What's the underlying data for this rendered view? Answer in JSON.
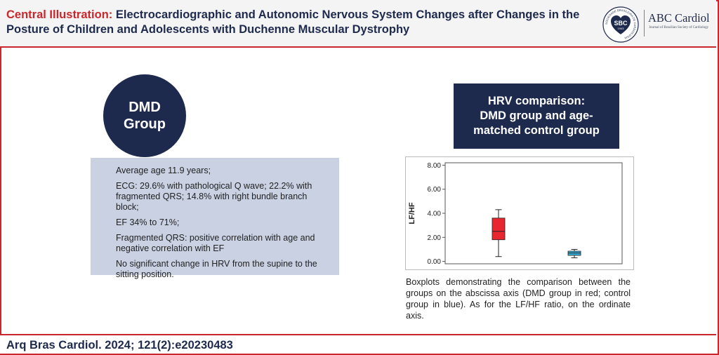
{
  "header": {
    "title_lead": "Central Illustration:",
    "title_rest": " Electrocardiographic and Autonomic Nervous System Changes after Changes in the Posture of Children and Adolescents with Duchenne Muscular Dystrophy",
    "logo": {
      "seal_abbr": "SBC",
      "seal_year": "1943",
      "seal_ring_text": "SOCIEDADE BRASILEIRA DE CARDIOLOGIA",
      "name": "ABC Cardiol",
      "subtitle": "Journal of Brazilian Society of Cardiology"
    }
  },
  "group": {
    "line1": "DMD",
    "line2": "Group",
    "items": [
      "Average age 11.9 years;",
      "ECG: 29.6% with pathological Q wave; 22.2% with fragmented QRS; 14.8% with right bundle branch block;",
      "EF 34% to 71%;",
      "Fragmented QRS: positive correlation with age and negative correlation with EF",
      "No significant change in HRV from the supine to the sitting position."
    ]
  },
  "hrv": {
    "heading_line1": "HRV comparison:",
    "heading_line2": "DMD group and age-",
    "heading_line3": "matched control group"
  },
  "caption": "Boxplots demonstrating the comparison between the groups on the abscissa axis (DMD group in red; control group in blue). As for the LF/HF ratio, on the ordinate axis.",
  "footer": {
    "citation": "Arq Bras Cardiol. 2024; 121(2):e20230483"
  },
  "colors": {
    "accent_red": "#c9272d",
    "navy": "#1e2a4d",
    "box_bg": "#c9d1e3",
    "dmd_box": "#e8262f",
    "control_box": "#3aaed8"
  },
  "chart_data": {
    "type": "boxplot",
    "ylabel": "LF/HF",
    "xlabel": "",
    "ylim": [
      -0.2,
      8.2
    ],
    "yticks": [
      "8.00",
      "6.00",
      "4.00",
      "2.00",
      "0.00"
    ],
    "ytick_values": [
      8,
      6,
      4,
      2,
      0
    ],
    "series": [
      {
        "whisker_low": 0.4,
        "q1": 1.8,
        "median": 2.5,
        "q3": 3.6,
        "whisker_high": 4.3
      },
      {
        "whisker_low": 0.3,
        "q1": 0.5,
        "median": 0.7,
        "q3": 0.85,
        "whisker_high": 1.0
      }
    ]
  }
}
